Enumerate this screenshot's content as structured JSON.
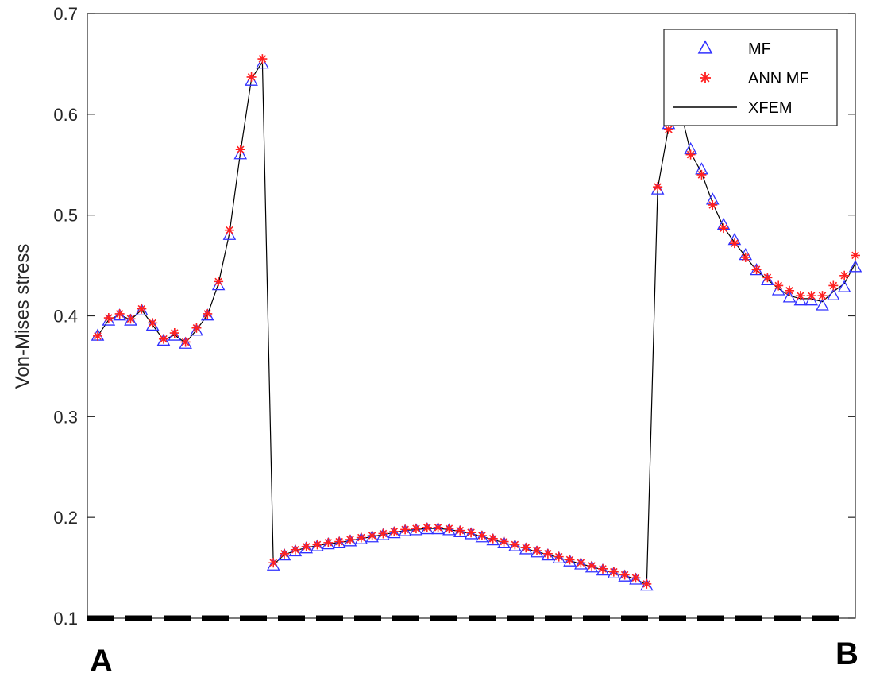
{
  "chart_data": {
    "type": "line",
    "title": "",
    "xlabel": "",
    "ylabel": "Von-Mises stress",
    "ylim": [
      0.1,
      0.7
    ],
    "yticks": [
      "0.1",
      "0.2",
      "0.3",
      "0.4",
      "0.5",
      "0.6",
      "0.7"
    ],
    "grid": false,
    "legend_position": "top-right",
    "endpoint_labels": {
      "start": "A",
      "end": "B"
    },
    "colors": {
      "MF": "#3030ff",
      "ANN MF": "#ff2020",
      "XFEM": "#000000",
      "path": "#000000"
    },
    "series": [
      {
        "name": "MF",
        "marker": "triangle",
        "values": [
          0.38,
          0.395,
          0.4,
          0.395,
          0.405,
          0.39,
          0.375,
          0.38,
          0.372,
          0.385,
          0.4,
          0.43,
          0.48,
          0.56,
          0.633,
          0.65,
          0.152,
          0.162,
          0.166,
          0.169,
          0.171,
          0.173,
          0.174,
          0.176,
          0.178,
          0.18,
          0.182,
          0.184,
          0.186,
          0.187,
          0.188,
          0.188,
          0.187,
          0.185,
          0.183,
          0.18,
          0.177,
          0.174,
          0.171,
          0.168,
          0.165,
          0.162,
          0.159,
          0.156,
          0.153,
          0.15,
          0.147,
          0.144,
          0.141,
          0.138,
          0.132,
          0.525,
          0.59,
          0.61,
          0.565,
          0.545,
          0.515,
          0.49,
          0.475,
          0.46,
          0.445,
          0.435,
          0.425,
          0.418,
          0.415,
          0.415,
          0.41,
          0.42,
          0.428,
          0.448
        ]
      },
      {
        "name": "ANN MF",
        "marker": "asterisk",
        "values": [
          0.38,
          0.398,
          0.402,
          0.397,
          0.407,
          0.393,
          0.377,
          0.383,
          0.374,
          0.388,
          0.402,
          0.434,
          0.485,
          0.565,
          0.637,
          0.655,
          0.155,
          0.164,
          0.168,
          0.171,
          0.173,
          0.175,
          0.176,
          0.178,
          0.18,
          0.182,
          0.184,
          0.186,
          0.188,
          0.189,
          0.19,
          0.19,
          0.189,
          0.187,
          0.185,
          0.182,
          0.179,
          0.176,
          0.173,
          0.17,
          0.167,
          0.164,
          0.161,
          0.158,
          0.155,
          0.152,
          0.149,
          0.146,
          0.143,
          0.14,
          0.134,
          0.528,
          0.585,
          0.605,
          0.56,
          0.54,
          0.51,
          0.487,
          0.472,
          0.458,
          0.446,
          0.438,
          0.43,
          0.425,
          0.42,
          0.42,
          0.42,
          0.43,
          0.44,
          0.46
        ]
      },
      {
        "name": "XFEM",
        "marker": "line",
        "values": [
          0.38,
          0.396,
          0.401,
          0.396,
          0.406,
          0.391,
          0.376,
          0.381,
          0.373,
          0.386,
          0.401,
          0.432,
          0.482,
          0.562,
          0.635,
          0.652,
          0.153,
          0.163,
          0.167,
          0.17,
          0.172,
          0.174,
          0.175,
          0.177,
          0.179,
          0.181,
          0.183,
          0.185,
          0.187,
          0.188,
          0.189,
          0.189,
          0.188,
          0.186,
          0.184,
          0.181,
          0.178,
          0.175,
          0.172,
          0.169,
          0.166,
          0.163,
          0.16,
          0.157,
          0.154,
          0.151,
          0.148,
          0.145,
          0.142,
          0.139,
          0.133,
          0.526,
          0.588,
          0.608,
          0.562,
          0.542,
          0.512,
          0.488,
          0.473,
          0.459,
          0.445,
          0.436,
          0.427,
          0.42,
          0.417,
          0.417,
          0.414,
          0.424,
          0.432,
          0.452
        ]
      }
    ]
  }
}
